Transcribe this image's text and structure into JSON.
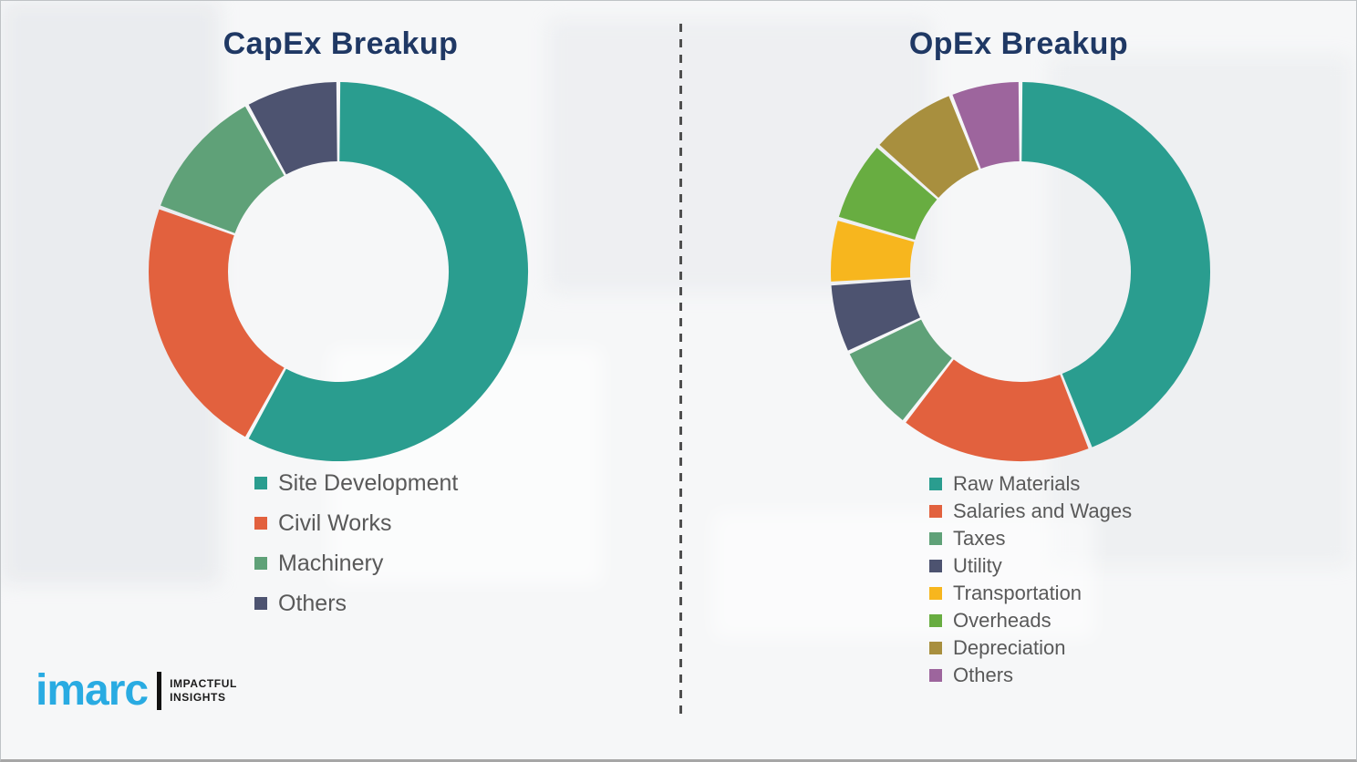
{
  "theme": {
    "title_color": "#1f3864",
    "legend_text_color": "#595959",
    "divider_color": "#4f4f4f",
    "background_color": "#f6f7f8"
  },
  "chart_data": [
    {
      "type": "pie",
      "subtype": "donut",
      "title": "CapEx Breakup",
      "categories": [
        "Site Development",
        "Civil Works",
        "Machinery",
        "Others"
      ],
      "values": [
        58,
        22.5,
        11.5,
        8
      ],
      "unit": "percent",
      "colors": [
        "#2a9d8f",
        "#e2613e",
        "#5fa178",
        "#4d5370"
      ],
      "start_angle_deg": 0,
      "direction": "clockwise",
      "legend_position": "below-chart-left"
    },
    {
      "type": "pie",
      "subtype": "donut",
      "title": "OpEx Breakup",
      "categories": [
        "Raw Materials",
        "Salaries and Wages",
        "Taxes",
        "Utility",
        "Transportation",
        "Overheads",
        "Depreciation",
        "Others"
      ],
      "values": [
        44,
        16.5,
        7.5,
        6,
        5.5,
        7,
        7.5,
        6
      ],
      "unit": "percent",
      "colors": [
        "#2a9d8f",
        "#e2613e",
        "#5fa178",
        "#4d5370",
        "#f7b61e",
        "#68ad41",
        "#a88f3e",
        "#9d659d"
      ],
      "start_angle_deg": 0,
      "direction": "clockwise",
      "legend_position": "below-chart-left"
    }
  ],
  "logo": {
    "brand": "imarc",
    "tagline_line1": "IMPACTFUL",
    "tagline_line2": "INSIGHTS",
    "brand_color": "#29abe2"
  }
}
